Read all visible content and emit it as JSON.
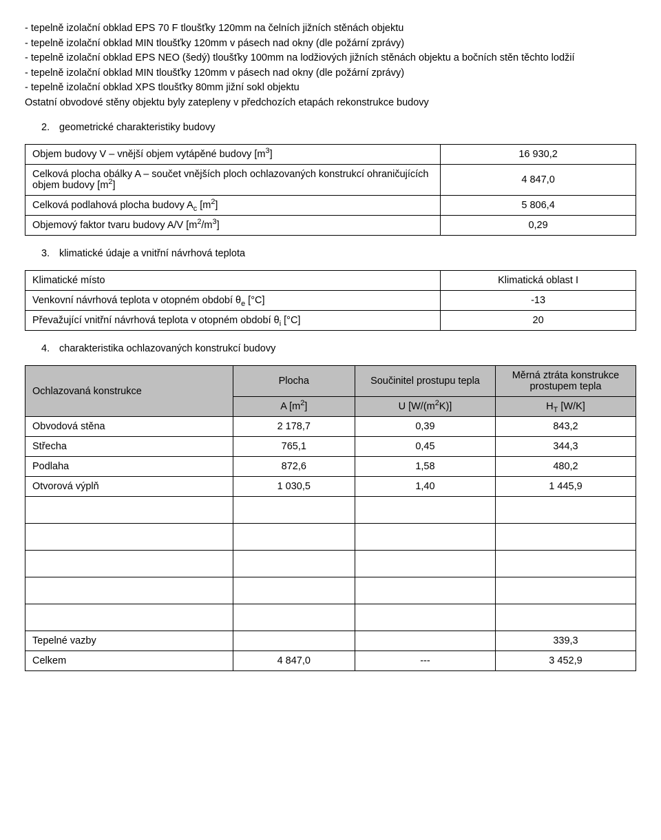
{
  "intro_bullets": [
    "- tepelně izolační obklad EPS 70 F tloušťky 120mm na čelních jižních stěnách objektu",
    "- tepelně izolační obklad MIN tloušťky 120mm v pásech nad okny (dle požární zprávy)",
    "- tepelně izolační obklad EPS NEO (šedý) tloušťky 100mm na lodžiových jižních stěnách objektu a bočních stěn těchto lodžií",
    "- tepelně izolační obklad MIN tloušťky 120mm v pásech nad okny (dle požární zprávy)",
    "- tepelně izolační obklad XPS tloušťky 80mm jižní sokl objektu",
    "Ostatní obvodové stěny objektu byly zatepleny v předchozích etapách rekonstrukce budovy"
  ],
  "sections": {
    "s2": {
      "num": "2.",
      "title": "geometrické charakteristiky budovy"
    },
    "s3": {
      "num": "3.",
      "title": "klimatické údaje a vnitřní návrhová teplota"
    },
    "s4": {
      "num": "4.",
      "title": "charakteristika ochlazovaných konstrukcí budovy"
    }
  },
  "table2": {
    "rows": [
      {
        "label_html": "Objem budovy V – vnější objem vytápěné budovy [m<sup>3</sup>]",
        "value": "16 930,2"
      },
      {
        "label_html": "Celková plocha obálky A – součet vnějších ploch ochlazovaných konstrukcí ohraničujících objem budovy [m<sup>2</sup>]",
        "value": "4 847,0"
      },
      {
        "label_html": "Celková podlahová plocha budovy A<sub>c</sub> [m<sup>2</sup>]",
        "value": "5 806,4"
      },
      {
        "label_html": "Objemový faktor tvaru budovy A/V [m<sup>2</sup>/m<sup>3</sup>]",
        "value": "0,29"
      }
    ]
  },
  "table3": {
    "rows": [
      {
        "label_html": "Klimatické místo",
        "value": "Klimatická oblast I"
      },
      {
        "label_html": "Venkovní návrhová teplota v otopném období θ<sub>e</sub> [°C]",
        "value": "-13"
      },
      {
        "label_html": "Převažující vnitřní návrhová teplota v otopném období θ<sub>i</sub> [°C]",
        "value": "20"
      }
    ]
  },
  "table4": {
    "headers": {
      "c0": "Ochlazovaná konstrukce",
      "c1_top": "Plocha",
      "c1_bot_html": "A [m<sup>2</sup>]",
      "c2_top": "Součinitel prostupu tepla",
      "c2_bot_html": "U [W/(m<sup>2</sup>K)]",
      "c3_top": "Měrná ztráta konstrukce prostupem tepla",
      "c3_bot_html": "H<sub>T</sub> [W/K]"
    },
    "rows": [
      {
        "c0": "Obvodová stěna",
        "c1": "2 178,7",
        "c2": "0,39",
        "c3": "843,2"
      },
      {
        "c0": "Střecha",
        "c1": "765,1",
        "c2": "0,45",
        "c3": "344,3"
      },
      {
        "c0": "Podlaha",
        "c1": "872,6",
        "c2": "1,58",
        "c3": "480,2"
      },
      {
        "c0": "Otvorová výplň",
        "c1": "1 030,5",
        "c2": "1,40",
        "c3": "1 445,9"
      }
    ],
    "empty_rows": 5,
    "tep_vazby": {
      "c0": "Tepelné vazby",
      "c1": "",
      "c2": "",
      "c3": "339,3"
    },
    "celkem": {
      "c0": "Celkem",
      "c1": "4 847,0",
      "c2": "---",
      "c3": "3 452,9"
    }
  }
}
